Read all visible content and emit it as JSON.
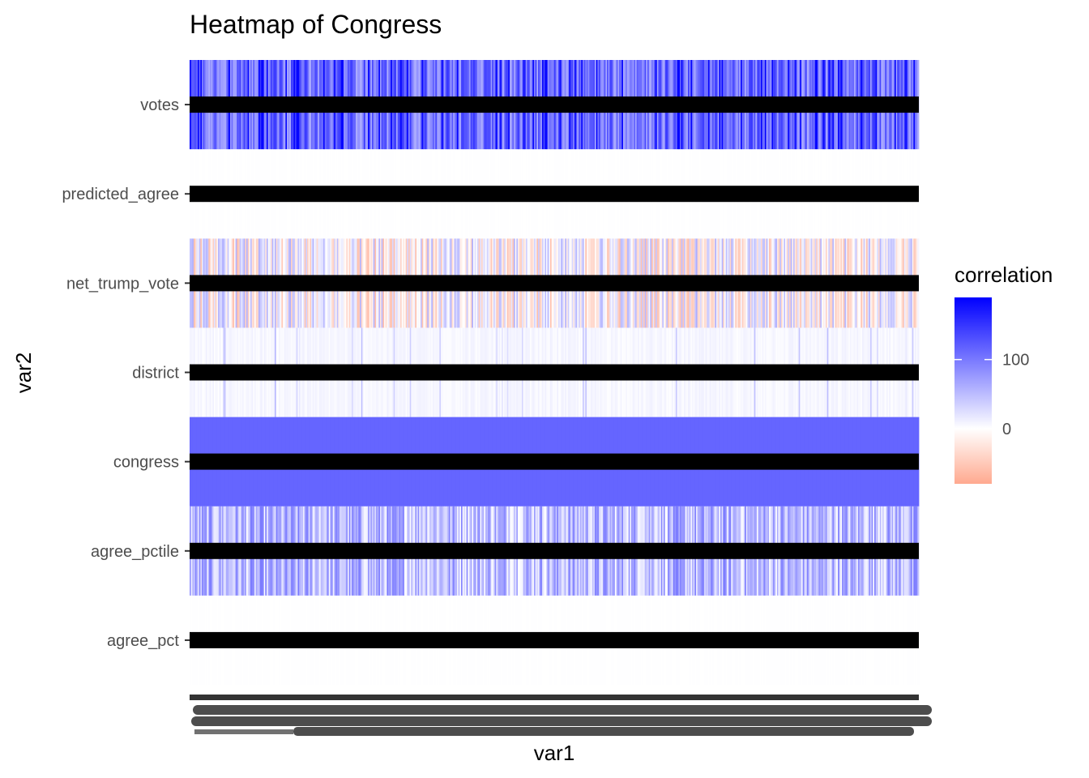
{
  "chart_data": {
    "type": "heatmap",
    "title": "Heatmap of Congress",
    "xlabel": "var1",
    "ylabel": "var2",
    "y_categories": [
      "agree_pct",
      "agree_pctile",
      "congress",
      "district",
      "net_trump_vote",
      "predicted_agree",
      "votes"
    ],
    "x_categories_count": 540,
    "x_tick_labels_legible": false,
    "fill_scale": {
      "name": "correlation",
      "low_color": "#ffa98f",
      "mid_color": "#ffffff",
      "high_color": "#0000ff",
      "midpoint": 0,
      "range": [
        -80,
        190
      ],
      "breaks": [
        0,
        100
      ]
    },
    "rows": [
      {
        "name": "votes",
        "typical_value": 90,
        "min": 40,
        "max": 185,
        "pattern": "mostly 60-120 with frequent high spikes near 180"
      },
      {
        "name": "predicted_agree",
        "typical_value": 0.5,
        "min": 0,
        "max": 1,
        "pattern": "near zero, white"
      },
      {
        "name": "net_trump_vote",
        "typical_value": 0,
        "min": -60,
        "max": 60,
        "pattern": "mixed light red and light purple"
      },
      {
        "name": "district",
        "typical_value": 8,
        "min": 1,
        "max": 53,
        "pattern": "mostly near white with occasional light purple"
      },
      {
        "name": "congress",
        "typical_value": 115,
        "min": 115,
        "max": 115,
        "pattern": "constant solid purple"
      },
      {
        "name": "agree_pctile",
        "typical_value": 50,
        "min": 0,
        "max": 100,
        "pattern": "uniform spread of light to medium purple"
      },
      {
        "name": "agree_pct",
        "typical_value": 0.5,
        "min": 0,
        "max": 1,
        "pattern": "near zero, white"
      }
    ]
  }
}
